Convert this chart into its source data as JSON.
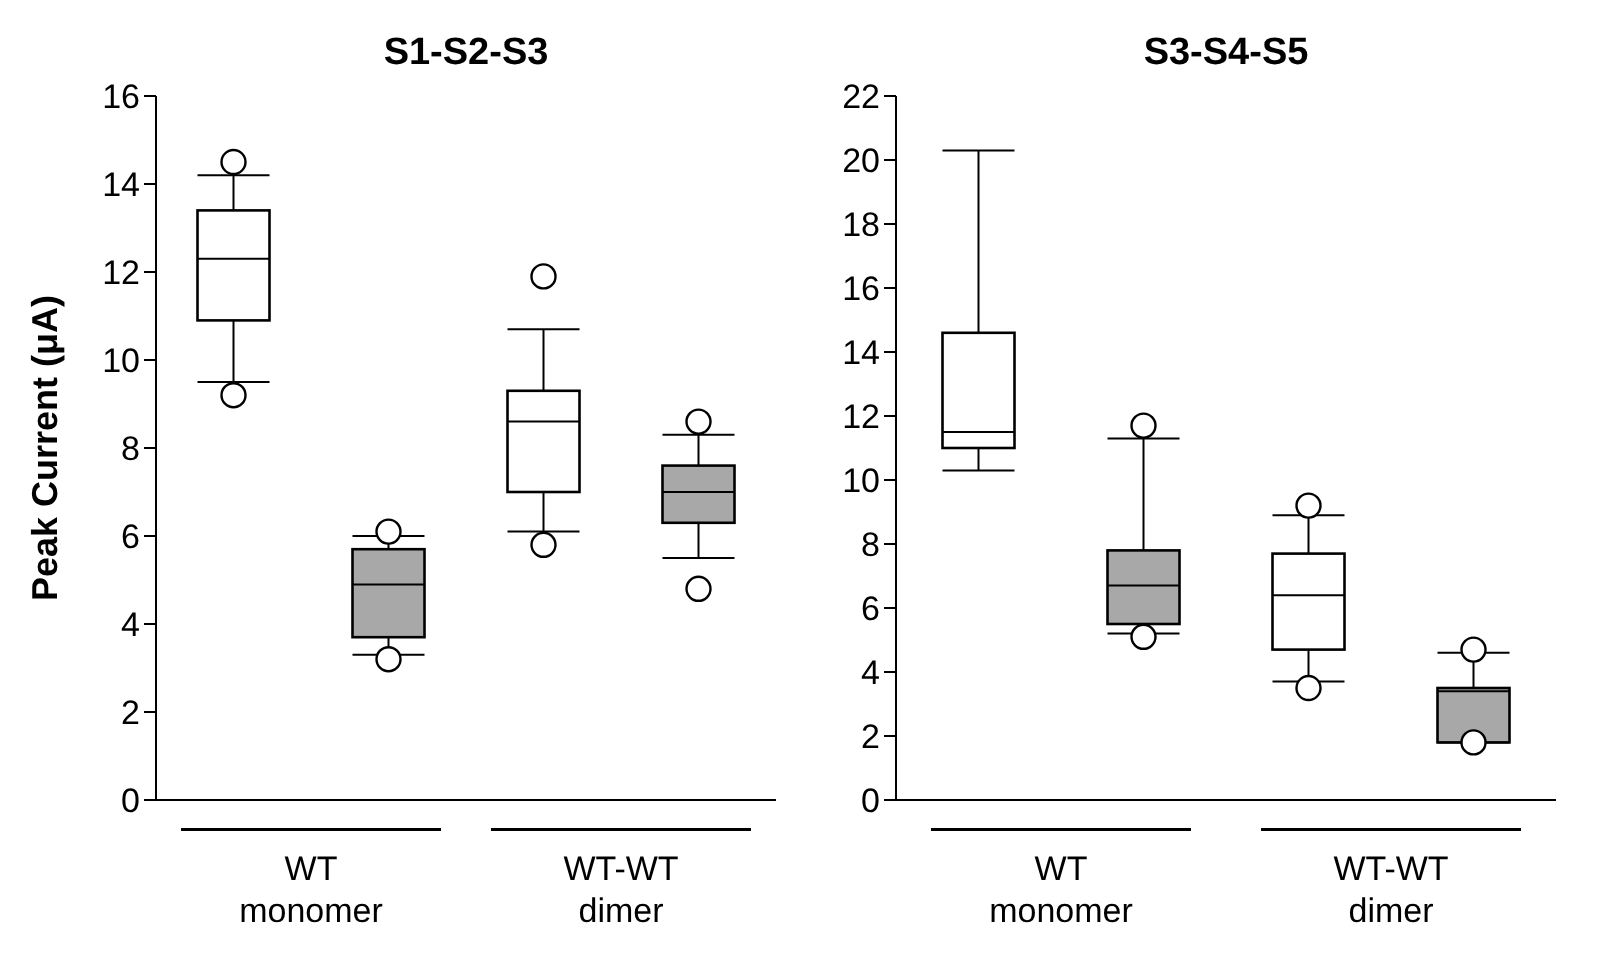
{
  "chart_data": [
    {
      "type": "box",
      "title": "S1-S2-S3",
      "ylabel": "Peak Current (μA)",
      "categories": [
        "WT monomer",
        "WT-WT dimer"
      ],
      "ylim": [
        0,
        16
      ],
      "yticks": [
        0,
        2,
        4,
        6,
        8,
        10,
        12,
        14,
        16
      ],
      "series": [
        {
          "color": "#ffffff",
          "boxes": [
            {
              "low": 9.5,
              "q1": 10.9,
              "median": 12.3,
              "q3": 13.4,
              "high": 14.2,
              "outliers": [
                9.2,
                14.5
              ]
            },
            {
              "low": 6.1,
              "q1": 7.0,
              "median": 8.6,
              "q3": 9.3,
              "high": 10.7,
              "outliers": [
                5.8,
                11.9
              ]
            }
          ]
        },
        {
          "color": "#a8a8a8",
          "boxes": [
            {
              "low": 3.3,
              "q1": 3.7,
              "median": 4.9,
              "q3": 5.7,
              "high": 6.0,
              "outliers": [
                3.2,
                6.1
              ]
            },
            {
              "low": 5.5,
              "q1": 6.3,
              "median": 7.0,
              "q3": 7.6,
              "high": 8.3,
              "outliers": [
                4.8,
                8.6
              ]
            }
          ]
        }
      ]
    },
    {
      "type": "box",
      "title": "S3-S4-S5",
      "categories": [
        "WT monomer",
        "WT-WT dimer"
      ],
      "ylim": [
        0,
        22
      ],
      "yticks": [
        0,
        2,
        4,
        6,
        8,
        10,
        12,
        14,
        16,
        18,
        20,
        22
      ],
      "series": [
        {
          "color": "#ffffff",
          "boxes": [
            {
              "low": 10.3,
              "q1": 11.0,
              "median": 11.5,
              "q3": 14.6,
              "high": 20.3
            },
            {
              "low": 3.7,
              "q1": 4.7,
              "median": 6.4,
              "q3": 7.7,
              "high": 8.9,
              "outliers": [
                3.5,
                9.2
              ]
            }
          ]
        },
        {
          "color": "#a8a8a8",
          "boxes": [
            {
              "low": 5.2,
              "q1": 5.5,
              "median": 6.7,
              "q3": 7.8,
              "high": 11.3,
              "outliers": [
                5.1,
                11.7
              ]
            },
            {
              "low": 1.8,
              "q1": 1.8,
              "median": 3.4,
              "q3": 3.5,
              "high": 4.6,
              "outliers": [
                1.8,
                4.7
              ]
            }
          ]
        }
      ]
    }
  ]
}
